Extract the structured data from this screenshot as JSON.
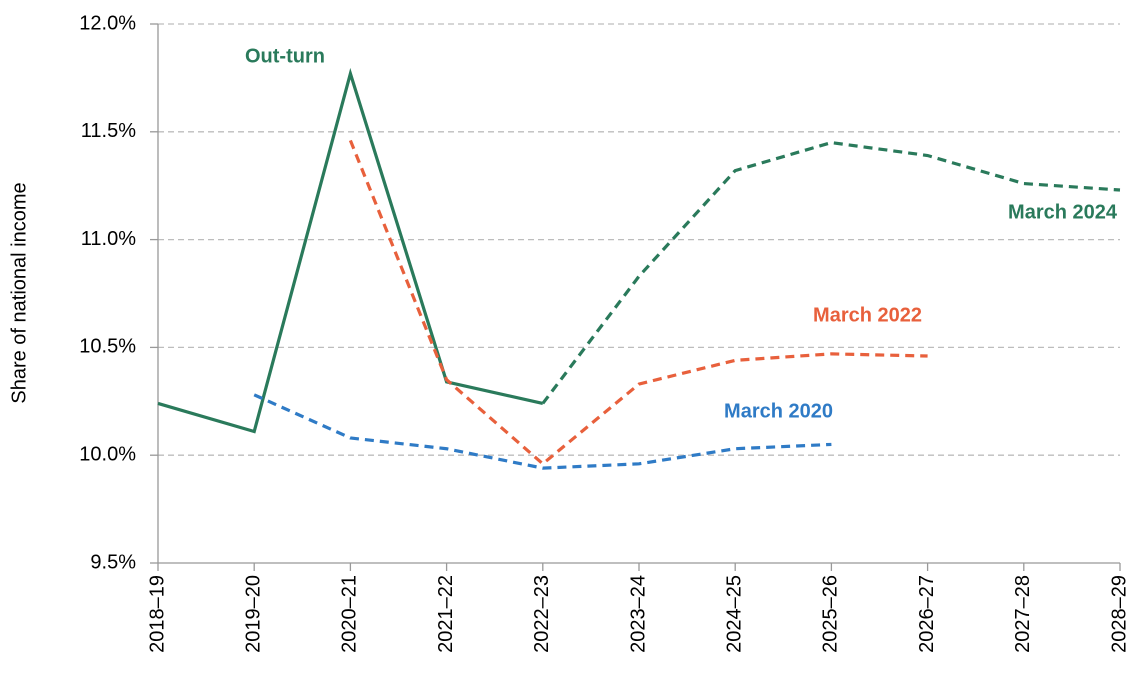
{
  "chart_data": {
    "type": "line",
    "y_label": "Share of national income",
    "categories": [
      "2018–19",
      "2019–20",
      "2020–21",
      "2021–22",
      "2022–23",
      "2023–24",
      "2024–25",
      "2025–26",
      "2026–27",
      "2027–28",
      "2028–29"
    ],
    "ylim": [
      9.5,
      12.0
    ],
    "yticks": [
      {
        "value": 9.5,
        "label": "9.5%"
      },
      {
        "value": 10.0,
        "label": "10.0%"
      },
      {
        "value": 10.5,
        "label": "10.5%"
      },
      {
        "value": 11.0,
        "label": "11.0%"
      },
      {
        "value": 11.5,
        "label": "11.5%"
      },
      {
        "value": 12.0,
        "label": "12.0%"
      }
    ],
    "grid": true,
    "series": [
      {
        "name": "Out-turn",
        "color": "#2a7a5b",
        "line_style": "solid",
        "values": [
          10.24,
          10.11,
          11.77,
          10.34,
          10.24,
          null,
          null,
          null,
          null,
          null,
          null
        ]
      },
      {
        "name": "March 2024",
        "color": "#2a7a5b",
        "line_style": "dashed",
        "values": [
          null,
          null,
          null,
          null,
          10.24,
          10.83,
          11.32,
          11.45,
          11.39,
          11.26,
          11.23
        ]
      },
      {
        "name": "March 2022",
        "color": "#e8603c",
        "line_style": "dashed",
        "values": [
          null,
          null,
          11.46,
          10.35,
          9.96,
          10.33,
          10.44,
          10.47,
          10.46,
          null,
          null
        ]
      },
      {
        "name": "March 2020",
        "color": "#2f7bc6",
        "line_style": "dashed",
        "values": [
          null,
          10.28,
          10.08,
          10.03,
          9.94,
          9.96,
          10.03,
          10.05,
          null,
          null,
          null
        ]
      }
    ]
  }
}
